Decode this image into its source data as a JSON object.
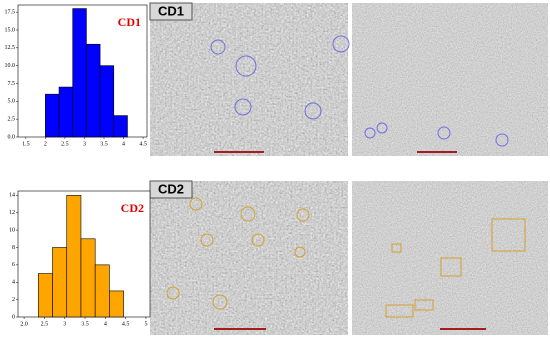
{
  "chart_data": [
    {
      "type": "histogram",
      "title": "CD1",
      "bins": [
        2.0,
        2.35,
        2.7,
        3.05,
        3.4,
        3.75,
        4.1
      ],
      "values": [
        6,
        7,
        18,
        13,
        10,
        3
      ],
      "color": "#0000ff",
      "edge_color": "#000000",
      "title_color": "#e00000",
      "xlim": [
        1.3,
        4.6
      ],
      "xticks": [
        1.5,
        2,
        2.5,
        3,
        3.5,
        4,
        4.5
      ],
      "ylim": [
        0,
        18.5
      ],
      "yticks": [
        {
          "value": 0,
          "label": "0.0"
        },
        2.5,
        {
          "value": 5,
          "label": "5.0"
        },
        7.5,
        {
          "value": 10,
          "label": "10.0"
        },
        12.5,
        {
          "value": 15,
          "label": "15.0"
        },
        17.5
      ]
    },
    {
      "type": "histogram",
      "title": "CD2",
      "bins": [
        2.35,
        2.7,
        3.05,
        3.4,
        3.75,
        4.1,
        4.45
      ],
      "values": [
        5,
        8,
        14,
        9,
        6,
        3
      ],
      "color": "#ffa500",
      "edge_color": "#000000",
      "title_color": "#e00000",
      "xlim": [
        1.85,
        5.1
      ],
      "xticks": [
        {
          "value": 2,
          "label": "2.0"
        },
        2.5,
        3,
        3.5,
        4,
        4.5,
        5
      ],
      "ylim": [
        0,
        14.5
      ],
      "yticks": [
        0,
        2,
        4,
        6,
        8,
        10,
        12,
        14
      ]
    }
  ],
  "images": [
    {
      "label": "CD1"
    },
    {
      "label": "CD2"
    }
  ]
}
